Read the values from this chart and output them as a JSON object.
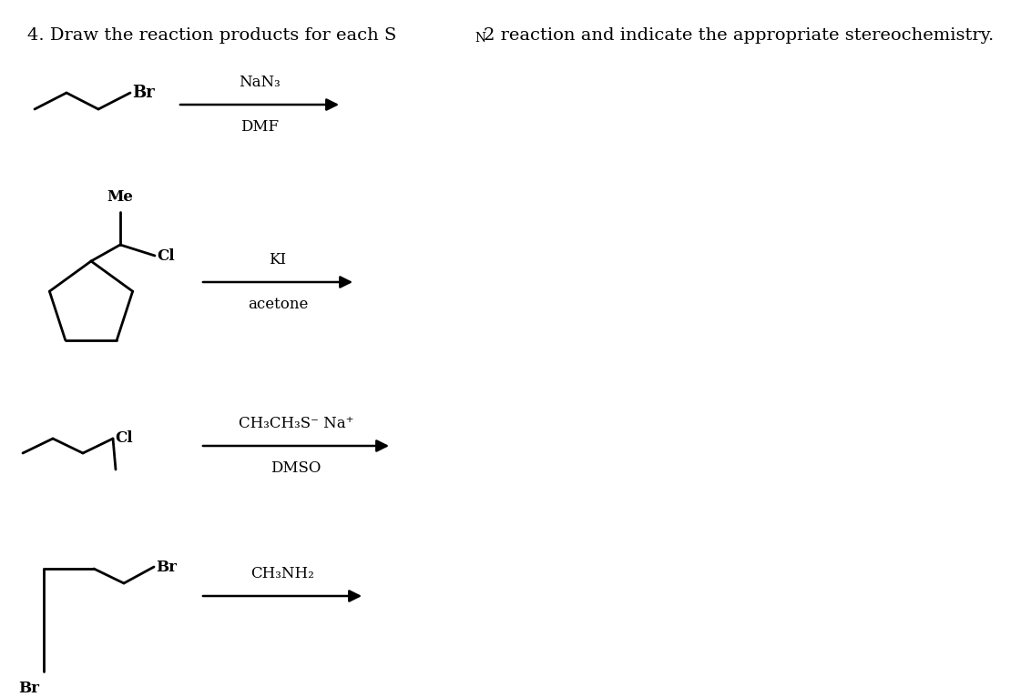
{
  "background": "#ffffff",
  "reactions": [
    {
      "reagent_top": "NaN₃",
      "reagent_bot": "DMF"
    },
    {
      "reagent_top": "KI",
      "reagent_bot": "acetone"
    },
    {
      "reagent_top": "CH₃CH₃S⁻ Na⁺",
      "reagent_bot": "DMSO"
    },
    {
      "reagent_top": "CH₃NH₂",
      "reagent_bot": ""
    }
  ],
  "font_size_title": 14,
  "font_size_reagent": 12,
  "font_size_label": 12
}
